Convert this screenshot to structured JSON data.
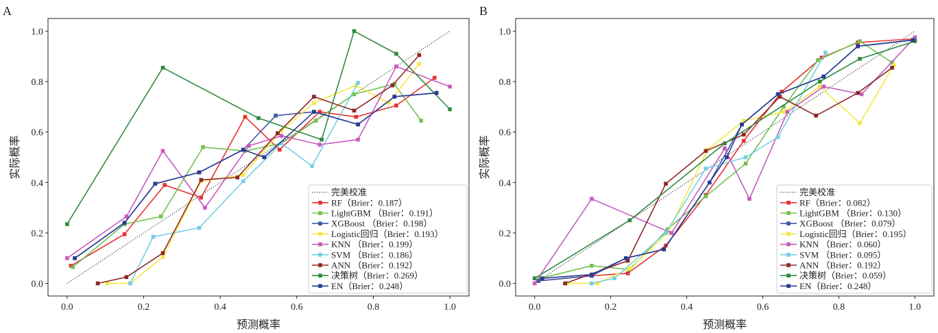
{
  "chart_data": [
    {
      "panel_label": "A",
      "type": "line",
      "xlabel": "预测概率",
      "ylabel": "实际概率",
      "xlim": [
        -0.05,
        1.05
      ],
      "ylim": [
        -0.05,
        1.05
      ],
      "x_ticks": [
        0,
        0.2,
        0.4,
        0.6,
        0.8,
        1.0
      ],
      "x_tick_labels": [
        "0.0",
        "0.2",
        "0.4",
        "0.6",
        "0.8",
        "1.0"
      ],
      "y_ticks": [
        0,
        0.2,
        0.4,
        0.6,
        0.8,
        1.0
      ],
      "y_tick_labels": [
        "0.0",
        "0.2",
        "0.4",
        "0.6",
        "0.8",
        "1.0"
      ],
      "grid": false,
      "legend_position": "lower-right",
      "reference_line": {
        "name": "完美校准",
        "color": "#222222",
        "x": [
          0,
          1
        ],
        "y": [
          0,
          1
        ]
      },
      "series": [
        {
          "name": "RF（Brier：0.187）",
          "color": "#e5312f",
          "x": [
            0.01,
            0.15,
            0.255,
            0.35,
            0.465,
            0.555,
            0.66,
            0.755,
            0.86,
            0.96
          ],
          "y": [
            0.07,
            0.195,
            0.39,
            0.34,
            0.66,
            0.53,
            0.68,
            0.66,
            0.705,
            0.815
          ]
        },
        {
          "name": "LightGBM （Brier：0.191）",
          "color": "#72c14f",
          "x": [
            0.015,
            0.15,
            0.245,
            0.355,
            0.465,
            0.56,
            0.65,
            0.75,
            0.855,
            0.925
          ],
          "y": [
            0.065,
            0.235,
            0.265,
            0.54,
            0.525,
            0.555,
            0.645,
            0.75,
            0.79,
            0.645
          ]
        },
        {
          "name": "XGBoost （Brier：0.198）",
          "color": "#3d56a6",
          "x": [
            0.02,
            0.15,
            0.23,
            0.345,
            0.46,
            0.545,
            0.645,
            0.76,
            0.855,
            0.965
          ],
          "y": [
            0.1,
            0.24,
            0.395,
            0.44,
            0.53,
            0.665,
            0.68,
            0.63,
            0.74,
            0.755
          ]
        },
        {
          "name": "Logistic回归（Brier：0.193）",
          "color": "#f3e845",
          "x": [
            0.105,
            0.165,
            0.25,
            0.35,
            0.46,
            0.56,
            0.645,
            0.755,
            0.84,
            0.92
          ],
          "y": [
            0.0,
            0.0,
            0.105,
            0.405,
            0.43,
            0.605,
            0.715,
            0.785,
            0.715,
            0.87
          ]
        },
        {
          "name": "KNN （Brier：0.199）",
          "color": "#c65bbd",
          "x": [
            0.0,
            0.155,
            0.25,
            0.36,
            0.475,
            0.56,
            0.66,
            0.76,
            0.86,
            1.0
          ],
          "y": [
            0.1,
            0.265,
            0.525,
            0.3,
            0.545,
            0.585,
            0.55,
            0.57,
            0.86,
            0.78
          ]
        },
        {
          "name": "SVM （Brier：0.186）",
          "color": "#74cfe3",
          "x": [
            0.165,
            0.225,
            0.345,
            0.46,
            0.56,
            0.64,
            0.76
          ],
          "y": [
            0.0,
            0.185,
            0.22,
            0.405,
            0.555,
            0.465,
            0.795
          ]
        },
        {
          "name": "ANN （Brier：0.192）",
          "color": "#8c2727",
          "x": [
            0.08,
            0.155,
            0.25,
            0.35,
            0.445,
            0.55,
            0.645,
            0.75,
            0.85,
            0.92
          ],
          "y": [
            0.0,
            0.025,
            0.12,
            0.41,
            0.42,
            0.595,
            0.74,
            0.685,
            0.785,
            0.905
          ]
        },
        {
          "name": "决策树（Brier：0.269）",
          "color": "#2e8a3f",
          "x": [
            0.0,
            0.25,
            0.5,
            0.665,
            0.75,
            0.86,
            1.0
          ],
          "y": [
            0.235,
            0.855,
            0.655,
            0.57,
            1.0,
            0.91,
            0.69
          ]
        },
        {
          "name": "EN（Brier：0.248）",
          "color": "#2a3b8f",
          "x": [
            0.02,
            0.15,
            0.23,
            0.345,
            0.46,
            0.515,
            0.645,
            0.76,
            0.855,
            0.965
          ],
          "y": [
            0.1,
            0.24,
            0.395,
            0.44,
            0.53,
            0.5,
            0.68,
            0.63,
            0.74,
            0.755
          ]
        }
      ]
    },
    {
      "panel_label": "B",
      "type": "line",
      "xlabel": "预测概率",
      "ylabel": "实际概率",
      "xlim": [
        -0.05,
        1.05
      ],
      "ylim": [
        -0.05,
        1.05
      ],
      "x_ticks": [
        0,
        0.2,
        0.4,
        0.6,
        0.8,
        1.0
      ],
      "x_tick_labels": [
        "0.0",
        "0.2",
        "0.4",
        "0.6",
        "0.8",
        "1.0"
      ],
      "y_ticks": [
        0,
        0.2,
        0.4,
        0.6,
        0.8,
        1.0
      ],
      "y_tick_labels": [
        "0.0",
        "0.2",
        "0.4",
        "0.6",
        "0.8",
        "1.0"
      ],
      "grid": false,
      "legend_position": "lower-right",
      "reference_line": {
        "name": "完美校准",
        "color": "#222222",
        "x": [
          0,
          1
        ],
        "y": [
          0,
          1
        ]
      },
      "series": [
        {
          "name": "RF（Brier：0.082）",
          "color": "#e5312f",
          "x": [
            0.01,
            0.15,
            0.245,
            0.345,
            0.45,
            0.55,
            0.65,
            0.755,
            0.85,
            1.0
          ],
          "y": [
            0.01,
            0.03,
            0.04,
            0.15,
            0.35,
            0.565,
            0.76,
            0.895,
            0.955,
            0.97
          ]
        },
        {
          "name": "LightGBM （Brier：0.130）",
          "color": "#72c14f",
          "x": [
            0.015,
            0.15,
            0.25,
            0.35,
            0.45,
            0.555,
            0.655,
            0.745,
            0.855,
            0.94
          ],
          "y": [
            0.02,
            0.07,
            0.055,
            0.215,
            0.345,
            0.475,
            0.7,
            0.885,
            0.96,
            0.875
          ]
        },
        {
          "name": "XGBoost （Brier：0.079）",
          "color": "#3d56a6",
          "x": [
            0.01,
            0.15,
            0.24,
            0.34,
            0.46,
            0.545,
            0.64,
            0.76,
            0.85,
            1.0
          ],
          "y": [
            0.01,
            0.03,
            0.1,
            0.135,
            0.4,
            0.63,
            0.75,
            0.82,
            0.94,
            0.965
          ]
        },
        {
          "name": "Logistic回归（Brier：0.195）",
          "color": "#f3e845",
          "x": [
            0.085,
            0.165,
            0.25,
            0.35,
            0.455,
            0.55,
            0.655,
            0.75,
            0.855,
            0.945
          ],
          "y": [
            0.0,
            0.0,
            0.06,
            0.2,
            0.53,
            0.645,
            0.68,
            0.78,
            0.635,
            0.865
          ]
        },
        {
          "name": "KNN （Brier：0.060）",
          "color": "#c65bbd",
          "x": [
            0.0,
            0.15,
            0.36,
            0.5,
            0.565,
            0.665,
            0.76,
            0.86,
            1.0
          ],
          "y": [
            0.0,
            0.335,
            0.2,
            0.535,
            0.335,
            0.68,
            0.78,
            0.75,
            0.975
          ]
        },
        {
          "name": "SVM （Brier：0.095）",
          "color": "#74cfe3",
          "x": [
            0.15,
            0.21,
            0.345,
            0.45,
            0.555,
            0.64,
            0.765
          ],
          "y": [
            0.0,
            0.02,
            0.2,
            0.455,
            0.5,
            0.58,
            0.915
          ]
        },
        {
          "name": "ANN （Brier：0.192）",
          "color": "#8c2727",
          "x": [
            0.08,
            0.245,
            0.345,
            0.45,
            0.55,
            0.645,
            0.74,
            0.85,
            0.94
          ],
          "y": [
            0.0,
            0.09,
            0.395,
            0.525,
            0.59,
            0.74,
            0.665,
            0.755,
            0.855
          ]
        },
        {
          "name": "决策树（Brier：0.059）",
          "color": "#2e8a3f",
          "x": [
            0.0,
            0.25,
            0.5,
            0.75,
            0.855,
            1.0
          ],
          "y": [
            0.02,
            0.25,
            0.555,
            0.8,
            0.89,
            0.96
          ]
        },
        {
          "name": "EN（Brier：0.248）",
          "color": "#2a3b8f",
          "x": [
            0.02,
            0.15,
            0.24,
            0.34,
            0.46,
            0.505,
            0.545,
            0.64,
            0.76,
            0.85,
            0.995
          ],
          "y": [
            0.02,
            0.035,
            0.1,
            0.135,
            0.4,
            0.5,
            0.63,
            0.75,
            0.82,
            0.94,
            0.965
          ]
        }
      ]
    }
  ]
}
